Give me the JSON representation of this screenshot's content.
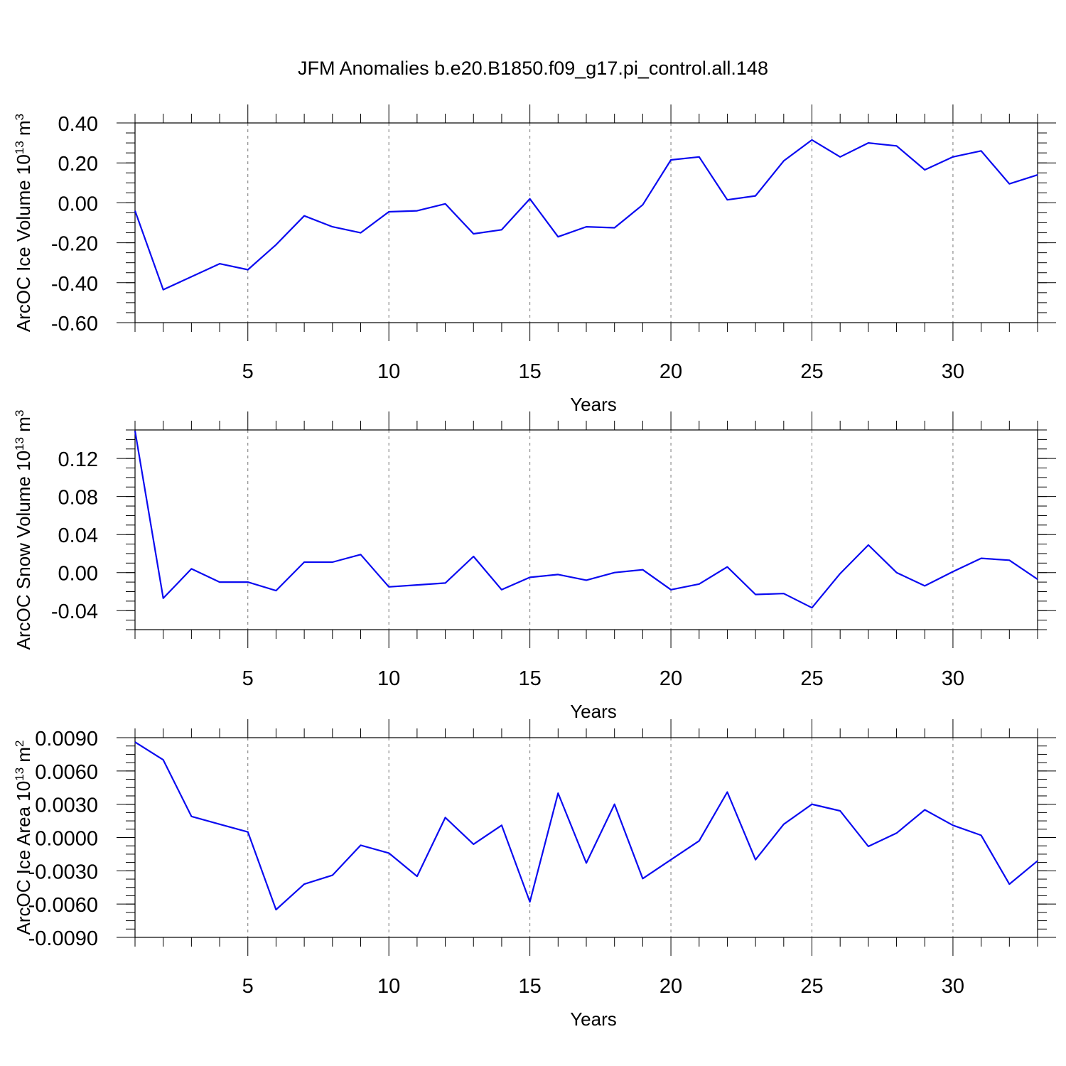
{
  "title": "JFM Anomalies b.e20.B1850.f09_g17.pi_control.all.148",
  "chart_data": [
    {
      "type": "line",
      "ylabel": "ArcOC Ice Volume",
      "ylabel_unit": "10",
      "ylabel_exp": "13",
      "ylabel_unit2": " m",
      "ylabel_exp2": "3",
      "xlabel": "Years",
      "xlim": [
        1,
        33
      ],
      "ylim": [
        -0.6,
        0.4
      ],
      "x_ticks": [
        5,
        10,
        15,
        20,
        25,
        30
      ],
      "x_tick_labels": [
        "5",
        "10",
        "15",
        "20",
        "25",
        "30"
      ],
      "y_ticks": [
        -0.6,
        -0.4,
        -0.2,
        0.0,
        0.2,
        0.4
      ],
      "y_tick_labels": [
        "-0.60",
        "-0.40",
        "-0.20",
        "0.00",
        "0.20",
        "0.40"
      ],
      "y_minor_step": 0.05,
      "grid": "dashed vertical at major x ticks",
      "color": "#0a0af0",
      "x": [
        1,
        2,
        3,
        4,
        5,
        6,
        7,
        8,
        9,
        10,
        11,
        12,
        13,
        14,
        15,
        16,
        17,
        18,
        19,
        20,
        21,
        22,
        23,
        24,
        25,
        26,
        27,
        28,
        29,
        30,
        31,
        32,
        33
      ],
      "values": [
        -0.04,
        -0.435,
        -0.37,
        -0.305,
        -0.335,
        -0.21,
        -0.065,
        -0.12,
        -0.15,
        -0.045,
        -0.04,
        -0.005,
        -0.155,
        -0.135,
        0.02,
        -0.17,
        -0.12,
        -0.125,
        -0.01,
        0.215,
        0.23,
        0.015,
        0.035,
        0.21,
        0.315,
        0.23,
        0.3,
        0.285,
        0.165,
        0.23,
        0.26,
        0.095,
        0.14
      ]
    },
    {
      "type": "line",
      "ylabel": "ArcOC Snow Volume",
      "ylabel_unit": "10",
      "ylabel_exp": "13",
      "ylabel_unit2": " m",
      "ylabel_exp2": "3",
      "xlabel": "Years",
      "xlim": [
        1,
        33
      ],
      "ylim": [
        -0.06,
        0.15
      ],
      "x_ticks": [
        5,
        10,
        15,
        20,
        25,
        30
      ],
      "x_tick_labels": [
        "5",
        "10",
        "15",
        "20",
        "25",
        "30"
      ],
      "y_ticks": [
        -0.04,
        0.0,
        0.04,
        0.08,
        0.12
      ],
      "y_tick_labels": [
        "-0.04",
        "0.00",
        "0.04",
        "0.08",
        "0.12"
      ],
      "y_minor_step": 0.01,
      "grid": "dashed vertical at major x ticks",
      "color": "#0a0af0",
      "x": [
        1,
        2,
        3,
        4,
        5,
        6,
        7,
        8,
        9,
        10,
        11,
        12,
        13,
        14,
        15,
        16,
        17,
        18,
        19,
        20,
        21,
        22,
        23,
        24,
        25,
        26,
        27,
        28,
        29,
        30,
        31,
        32,
        33
      ],
      "values": [
        0.149,
        -0.027,
        0.004,
        -0.01,
        -0.01,
        -0.019,
        0.011,
        0.011,
        0.019,
        -0.015,
        -0.013,
        -0.011,
        0.017,
        -0.018,
        -0.005,
        -0.002,
        -0.008,
        0.0,
        0.003,
        -0.018,
        -0.012,
        0.006,
        -0.023,
        -0.022,
        -0.037,
        -0.001,
        0.029,
        0.0,
        -0.014,
        0.001,
        0.015,
        0.013,
        -0.007
      ]
    },
    {
      "type": "line",
      "ylabel": "ArcOC Ice Area",
      "ylabel_unit": "10",
      "ylabel_exp": "13",
      "ylabel_unit2": " m",
      "ylabel_exp2": "2",
      "xlabel": "Years",
      "xlim": [
        1,
        33
      ],
      "ylim": [
        -0.009,
        0.009
      ],
      "x_ticks": [
        5,
        10,
        15,
        20,
        25,
        30
      ],
      "x_tick_labels": [
        "5",
        "10",
        "15",
        "20",
        "25",
        "30"
      ],
      "y_ticks": [
        -0.009,
        -0.006,
        -0.003,
        0.0,
        0.003,
        0.006,
        0.009
      ],
      "y_tick_labels": [
        "-0.0090",
        "-0.0060",
        "-0.0030",
        "0.0000",
        "0.0030",
        "0.0060",
        "0.0090"
      ],
      "y_minor_step": 0.00075,
      "grid": "dashed vertical at major x ticks",
      "color": "#0a0af0",
      "x": [
        1,
        2,
        3,
        4,
        5,
        6,
        7,
        8,
        9,
        10,
        11,
        12,
        13,
        14,
        15,
        16,
        17,
        18,
        19,
        20,
        21,
        22,
        23,
        24,
        25,
        26,
        27,
        28,
        29,
        30,
        31,
        32,
        33
      ],
      "values": [
        0.0086,
        0.007,
        0.0019,
        0.0012,
        0.0005,
        -0.0065,
        -0.0042,
        -0.0034,
        -0.0007,
        -0.0014,
        -0.0035,
        0.0018,
        -0.0006,
        0.0011,
        -0.0058,
        0.004,
        -0.0023,
        0.003,
        -0.0037,
        -0.002,
        -0.0003,
        0.0041,
        -0.002,
        0.0012,
        0.003,
        0.0024,
        -0.0008,
        0.0004,
        0.0025,
        0.0011,
        0.0002,
        -0.0042,
        -0.0021
      ]
    }
  ]
}
